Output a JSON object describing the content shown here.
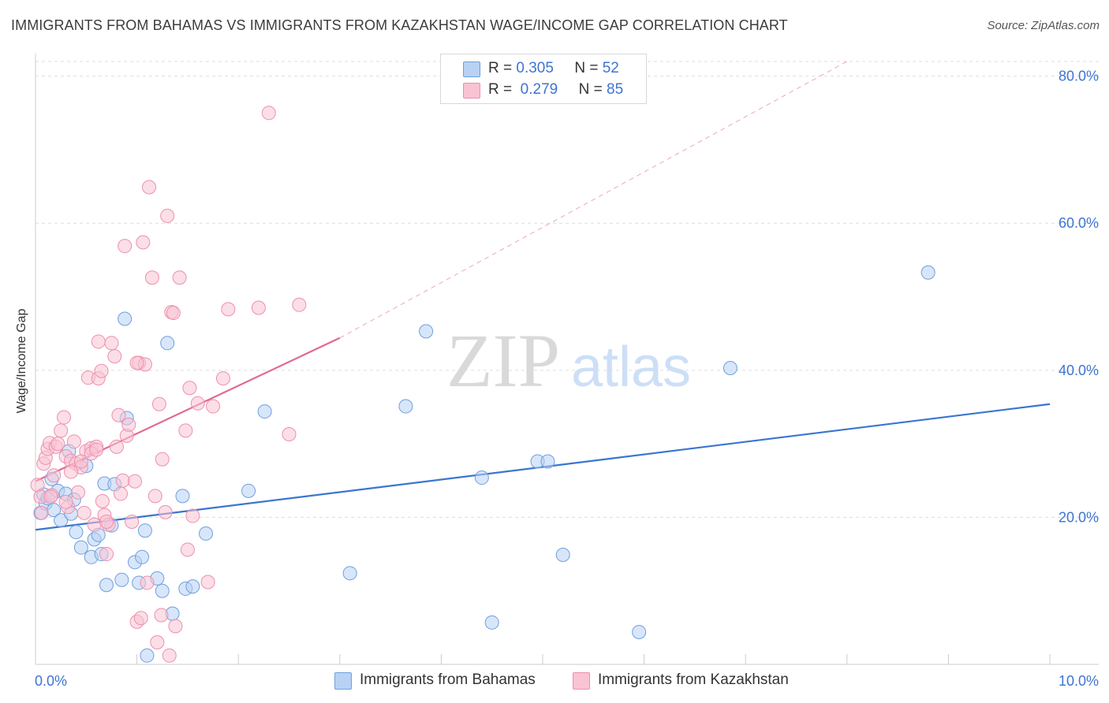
{
  "title": "IMMIGRANTS FROM BAHAMAS VS IMMIGRANTS FROM KAZAKHSTAN WAGE/INCOME GAP CORRELATION CHART",
  "source": "Source: ZipAtlas.com",
  "watermark": {
    "zip": "ZIP",
    "atlas": "atlas"
  },
  "legend": {
    "rows": [
      {
        "r_label": "R =",
        "r_value": "0.305",
        "n_label": "N =",
        "n_value": "52"
      },
      {
        "r_label": "R =",
        "r_value": "0.279",
        "n_label": "N =",
        "n_value": "85"
      }
    ]
  },
  "colors": {
    "blue_fill": "#b8d2f4",
    "blue_stroke": "#6f9fe0",
    "blue_line": "#3a75d0",
    "pink_fill": "#f9c3d3",
    "pink_stroke": "#ec90ad",
    "pink_line": "#e06a92",
    "axis_text": "#3e74d2",
    "grid": "#dddddd"
  },
  "chart_data": {
    "type": "scatter",
    "title": "IMMIGRANTS FROM BAHAMAS VS IMMIGRANTS FROM KAZAKHSTAN WAGE/INCOME GAP CORRELATION CHART",
    "xlabel": "",
    "ylabel": "Wage/Income Gap",
    "xlim": [
      0,
      10
    ],
    "ylim": [
      0,
      82
    ],
    "x_tick_labels": [
      "0.0%",
      "10.0%"
    ],
    "y_ticks": [
      20,
      40,
      60,
      80
    ],
    "y_tick_labels": [
      "20.0%",
      "40.0%",
      "60.0%",
      "80.0%"
    ],
    "grid": true,
    "legend_position": "top-center",
    "series": [
      {
        "name": "Immigrants from Bahamas",
        "color": "#b8d2f4",
        "r": 0.305,
        "n": 52,
        "trend": {
          "x": [
            0,
            10
          ],
          "y": [
            18.3,
            35.4
          ],
          "style": "solid"
        },
        "points": [
          [
            0.05,
            20.6
          ],
          [
            0.08,
            23.1
          ],
          [
            0.1,
            21.9
          ],
          [
            0.12,
            22.6
          ],
          [
            0.16,
            25.2
          ],
          [
            0.18,
            21.0
          ],
          [
            0.22,
            23.6
          ],
          [
            0.25,
            19.6
          ],
          [
            0.3,
            23.2
          ],
          [
            0.33,
            29.0
          ],
          [
            0.35,
            20.5
          ],
          [
            0.38,
            22.4
          ],
          [
            0.4,
            18.0
          ],
          [
            0.45,
            15.9
          ],
          [
            0.5,
            27.0
          ],
          [
            0.55,
            14.6
          ],
          [
            0.58,
            17.0
          ],
          [
            0.62,
            17.6
          ],
          [
            0.65,
            15.0
          ],
          [
            0.68,
            24.6
          ],
          [
            0.7,
            10.8
          ],
          [
            0.75,
            18.9
          ],
          [
            0.78,
            24.5
          ],
          [
            0.85,
            11.5
          ],
          [
            0.88,
            47.0
          ],
          [
            0.9,
            33.5
          ],
          [
            0.98,
            13.9
          ],
          [
            1.02,
            11.1
          ],
          [
            1.05,
            14.6
          ],
          [
            1.08,
            18.2
          ],
          [
            1.1,
            1.2
          ],
          [
            1.2,
            11.7
          ],
          [
            1.25,
            10.0
          ],
          [
            1.3,
            43.7
          ],
          [
            1.35,
            6.9
          ],
          [
            1.45,
            22.9
          ],
          [
            1.48,
            10.3
          ],
          [
            1.55,
            10.6
          ],
          [
            1.68,
            17.8
          ],
          [
            2.1,
            23.6
          ],
          [
            2.26,
            34.4
          ],
          [
            3.1,
            12.4
          ],
          [
            3.65,
            35.1
          ],
          [
            3.85,
            45.3
          ],
          [
            4.4,
            25.4
          ],
          [
            4.5,
            5.7
          ],
          [
            4.95,
            27.6
          ],
          [
            5.05,
            27.6
          ],
          [
            5.2,
            14.9
          ],
          [
            5.95,
            4.4
          ],
          [
            6.85,
            40.3
          ],
          [
            8.8,
            53.3
          ]
        ]
      },
      {
        "name": "Immigrants from Kazakhstan",
        "color": "#f9c3d3",
        "r": 0.279,
        "n": 85,
        "trend": {
          "x": [
            0,
            3.0
          ],
          "y": [
            24.9,
            44.4
          ],
          "style": "solid"
        },
        "trend_extension": {
          "x": [
            3.0,
            8.0
          ],
          "y": [
            44.4,
            82.0
          ],
          "style": "dashed"
        },
        "points": [
          [
            0.02,
            24.4
          ],
          [
            0.05,
            22.8
          ],
          [
            0.06,
            20.6
          ],
          [
            0.08,
            27.3
          ],
          [
            0.1,
            28.1
          ],
          [
            0.12,
            29.3
          ],
          [
            0.14,
            30.1
          ],
          [
            0.16,
            23.0
          ],
          [
            0.18,
            25.7
          ],
          [
            0.2,
            29.6
          ],
          [
            0.22,
            30.0
          ],
          [
            0.25,
            31.8
          ],
          [
            0.28,
            33.6
          ],
          [
            0.3,
            28.3
          ],
          [
            0.32,
            21.4
          ],
          [
            0.35,
            27.7
          ],
          [
            0.38,
            30.3
          ],
          [
            0.4,
            27.3
          ],
          [
            0.42,
            23.4
          ],
          [
            0.45,
            26.8
          ],
          [
            0.48,
            20.6
          ],
          [
            0.5,
            29.0
          ],
          [
            0.52,
            39.0
          ],
          [
            0.55,
            29.4
          ],
          [
            0.58,
            19.0
          ],
          [
            0.6,
            29.6
          ],
          [
            0.62,
            38.9
          ],
          [
            0.62,
            43.9
          ],
          [
            0.65,
            39.9
          ],
          [
            0.66,
            22.2
          ],
          [
            0.68,
            20.3
          ],
          [
            0.7,
            15.0
          ],
          [
            0.72,
            19.0
          ],
          [
            0.75,
            43.7
          ],
          [
            0.78,
            41.9
          ],
          [
            0.8,
            29.6
          ],
          [
            0.82,
            33.9
          ],
          [
            0.84,
            23.2
          ],
          [
            0.86,
            25.0
          ],
          [
            0.88,
            56.9
          ],
          [
            0.9,
            31.1
          ],
          [
            0.92,
            32.6
          ],
          [
            0.95,
            19.4
          ],
          [
            0.98,
            24.9
          ],
          [
            1.0,
            5.8
          ],
          [
            1.02,
            41.0
          ],
          [
            1.04,
            6.3
          ],
          [
            1.06,
            57.4
          ],
          [
            1.08,
            40.8
          ],
          [
            1.1,
            11.1
          ],
          [
            1.12,
            64.9
          ],
          [
            1.15,
            52.6
          ],
          [
            1.18,
            22.9
          ],
          [
            1.2,
            3.0
          ],
          [
            1.22,
            35.4
          ],
          [
            1.24,
            6.7
          ],
          [
            1.25,
            27.9
          ],
          [
            1.28,
            20.7
          ],
          [
            1.3,
            61.0
          ],
          [
            1.32,
            1.2
          ],
          [
            1.34,
            47.9
          ],
          [
            1.36,
            47.8
          ],
          [
            1.38,
            5.2
          ],
          [
            1.42,
            52.6
          ],
          [
            1.48,
            31.8
          ],
          [
            1.5,
            15.6
          ],
          [
            1.52,
            37.6
          ],
          [
            1.55,
            20.2
          ],
          [
            1.6,
            35.5
          ],
          [
            1.7,
            11.2
          ],
          [
            1.75,
            35.1
          ],
          [
            1.85,
            38.9
          ],
          [
            2.2,
            48.5
          ],
          [
            2.3,
            75.0
          ],
          [
            2.5,
            31.3
          ],
          [
            2.6,
            48.9
          ],
          [
            1.9,
            48.3
          ],
          [
            0.3,
            22.1
          ],
          [
            0.45,
            27.6
          ],
          [
            0.55,
            28.7
          ],
          [
            0.7,
            19.4
          ],
          [
            1.0,
            41.0
          ],
          [
            0.15,
            22.8
          ],
          [
            0.35,
            26.2
          ],
          [
            0.6,
            29.2
          ]
        ]
      }
    ]
  }
}
